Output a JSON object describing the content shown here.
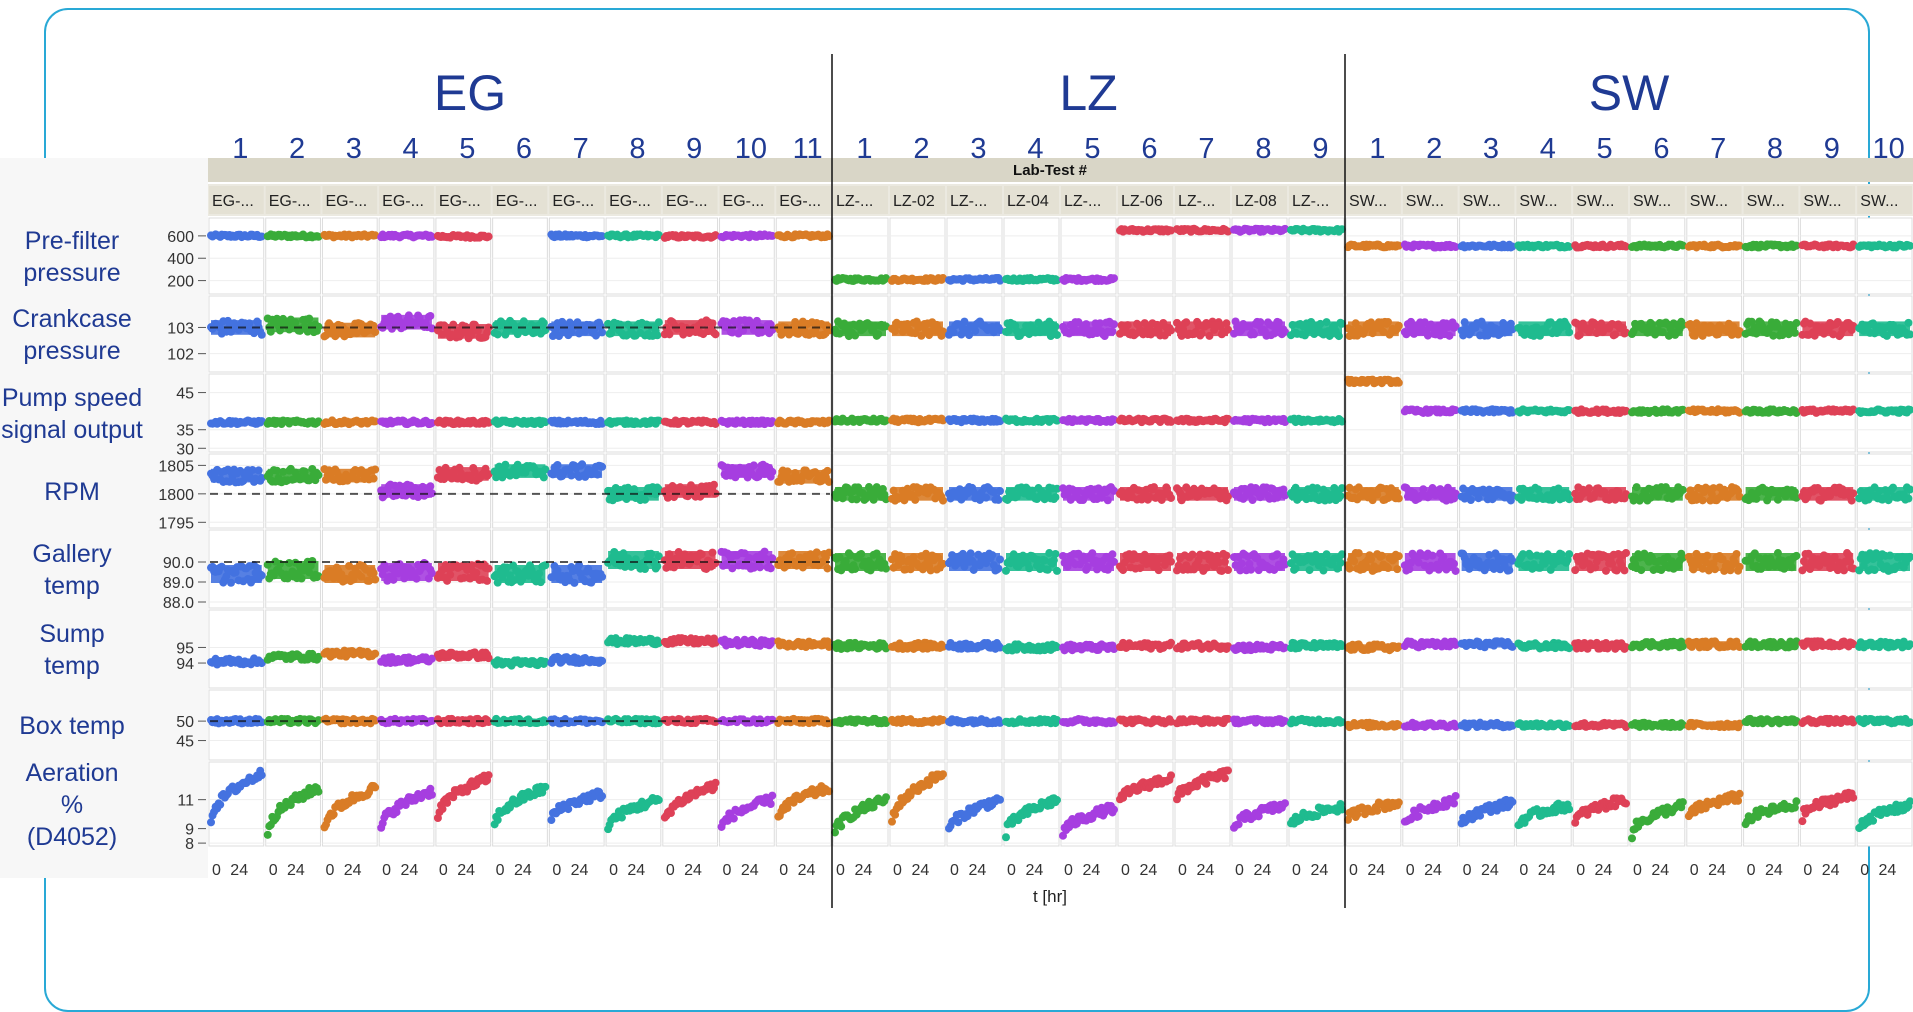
{
  "chart_data": {
    "type": "scatter",
    "header_title": "Lab-Test #",
    "x_axis_title": "t  [hr]",
    "x_tick_labels": [
      "0",
      "24"
    ],
    "groups": [
      {
        "name": "EG",
        "column_numbers": [
          "1",
          "2",
          "3",
          "4",
          "5",
          "6",
          "7",
          "8",
          "9",
          "10",
          "11"
        ],
        "test_ids": [
          "EG-...",
          "EG-...",
          "EG-...",
          "EG-...",
          "EG-...",
          "EG-...",
          "EG-...",
          "EG-...",
          "EG-...",
          "EG-...",
          "EG-..."
        ]
      },
      {
        "name": "LZ",
        "column_numbers": [
          "1",
          "2",
          "3",
          "4",
          "5",
          "6",
          "7",
          "8",
          "9"
        ],
        "test_ids": [
          "LZ-...",
          "LZ-02",
          "LZ-...",
          "LZ-04",
          "LZ-...",
          "LZ-06",
          "LZ-...",
          "LZ-08",
          "LZ-..."
        ]
      },
      {
        "name": "SW",
        "column_numbers": [
          "1",
          "2",
          "3",
          "4",
          "5",
          "6",
          "7",
          "8",
          "9",
          "10"
        ],
        "test_ids": [
          "SW...",
          "SW...",
          "SW...",
          "SW...",
          "SW...",
          "SW...",
          "SW...",
          "SW...",
          "SW...",
          "SW..."
        ]
      }
    ],
    "colors": [
      "#4472e0",
      "#3aac3a",
      "#d97c26",
      "#a63ee0",
      "#de4157",
      "#1fbb8f"
    ],
    "color_sequences": {
      "EG": [
        0,
        1,
        2,
        3,
        4,
        5,
        0,
        5,
        4,
        3,
        2
      ],
      "LZ": [
        1,
        2,
        0,
        5,
        3,
        4,
        4,
        3,
        5
      ],
      "SW": [
        2,
        3,
        0,
        5,
        4,
        1,
        2,
        1,
        4,
        5
      ]
    },
    "rows": [
      {
        "label": [
          "Pre-filter",
          "pressure"
        ],
        "ticks": [
          {
            "value": 600,
            "label": "600"
          },
          {
            "value": 400,
            "label": "400"
          },
          {
            "value": 200,
            "label": "200"
          }
        ],
        "range": [
          80,
          760
        ],
        "values": {
          "EG": [
            600,
            600,
            600,
            600,
            595,
            null,
            600,
            600,
            595,
            600,
            600
          ],
          "LZ": [
            210,
            210,
            210,
            210,
            210,
            650,
            650,
            650,
            650
          ],
          "SW": [
            510,
            510,
            510,
            510,
            510,
            510,
            510,
            510,
            510,
            510
          ]
        },
        "spread": 14
      },
      {
        "label": [
          "Crankcase",
          "pressure"
        ],
        "ticks": [
          {
            "value": 103,
            "label": "103"
          },
          {
            "value": 102,
            "label": "102"
          }
        ],
        "range": [
          101.3,
          104.2
        ],
        "values": {
          "EG": [
            103,
            103.1,
            102.9,
            103.2,
            102.85,
            103,
            102.95,
            102.95,
            103,
            103,
            102.95
          ],
          "LZ": [
            102.95,
            102.95,
            102.95,
            102.95,
            102.95,
            102.95,
            102.95,
            102.95,
            102.95
          ],
          "SW": [
            102.95,
            102.95,
            102.95,
            102.95,
            102.95,
            102.95,
            102.95,
            102.95,
            102.95,
            102.95
          ]
        },
        "spread": 0.28
      },
      {
        "label": [
          "Pump speed",
          "signal output"
        ],
        "ticks": [
          {
            "value": 45,
            "label": "45"
          },
          {
            "value": 35,
            "label": "35"
          },
          {
            "value": 30,
            "label": "30"
          }
        ],
        "range": [
          29,
          50
        ],
        "values": {
          "EG": [
            37,
            37,
            37,
            37,
            37,
            37,
            37,
            37,
            37,
            37,
            37
          ],
          "LZ": [
            37.5,
            37.5,
            37.5,
            37.5,
            37.5,
            37.5,
            37.5,
            37.5,
            37.5
          ],
          "SW": [
            48,
            40,
            40,
            40,
            40,
            40,
            40,
            40,
            40,
            40
          ]
        },
        "spread": 0.5
      },
      {
        "label": [
          "RPM"
        ],
        "ticks": [
          {
            "value": 1805,
            "label": "1805"
          },
          {
            "value": 1800,
            "label": "1800"
          },
          {
            "value": 1795,
            "label": "1795"
          }
        ],
        "range": [
          1794,
          1807
        ],
        "values": {
          "EG": [
            1803.2,
            1803.2,
            1803.2,
            1800.5,
            1803.5,
            1804,
            1804,
            1800,
            1800.5,
            1804,
            1803
          ],
          "LZ": [
            1800,
            1800,
            1800,
            1800,
            1800,
            1800,
            1800,
            1800,
            1800
          ],
          "SW": [
            1800,
            1800,
            1800,
            1800,
            1800,
            1800,
            1800,
            1800,
            1800,
            1800
          ]
        },
        "spread": 1.2
      },
      {
        "label": [
          "Gallery",
          "temp"
        ],
        "ticks": [
          {
            "value": 90.0,
            "label": "90.0"
          },
          {
            "value": 89.0,
            "label": "89.0"
          },
          {
            "value": 88.0,
            "label": "88.0"
          }
        ],
        "range": [
          87.7,
          91.6
        ],
        "values": {
          "EG": [
            89.4,
            89.6,
            89.4,
            89.5,
            89.5,
            89.4,
            89.4,
            90.1,
            90.1,
            90.1,
            90.1
          ],
          "LZ": [
            90,
            90,
            90,
            90,
            90,
            90,
            90,
            90,
            90
          ],
          "SW": [
            90,
            90,
            90,
            90,
            90,
            90,
            90,
            90,
            90,
            90
          ]
        },
        "spread": 0.45
      },
      {
        "label": [
          "Sump",
          "temp"
        ],
        "ticks": [
          {
            "value": 95,
            "label": "95"
          },
          {
            "value": 94,
            "label": "94"
          }
        ],
        "range": [
          92.4,
          97.4
        ],
        "values": {
          "EG": [
            94.1,
            94.4,
            94.6,
            94.2,
            94.5,
            94,
            94.2,
            95.4,
            95.4,
            95.3,
            95.2
          ],
          "LZ": [
            95.1,
            95.1,
            95.1,
            95,
            95,
            95.1,
            95.1,
            95,
            95.1
          ],
          "SW": [
            95,
            95.2,
            95.2,
            95.1,
            95.1,
            95.2,
            95.2,
            95.2,
            95.2,
            95.2
          ]
        },
        "spread": 0.2
      },
      {
        "label": [
          "Box temp"
        ],
        "ticks": [
          {
            "value": 50,
            "label": "50"
          },
          {
            "value": 45,
            "label": "45"
          }
        ],
        "range": [
          40,
          58
        ],
        "values": {
          "EG": [
            50,
            50,
            50,
            50,
            50,
            50,
            50,
            50,
            50,
            50,
            50
          ],
          "LZ": [
            50,
            50,
            50,
            50,
            50,
            50,
            50,
            50,
            50
          ],
          "SW": [
            49,
            49,
            49,
            49,
            49,
            49,
            49,
            50,
            50,
            50
          ]
        },
        "spread": 0.6
      },
      {
        "label": [
          "Aeration",
          "%",
          "(D4052)"
        ],
        "ticks": [
          {
            "value": 11,
            "label": "11"
          },
          {
            "value": 9,
            "label": "9"
          },
          {
            "value": 8,
            "label": "8"
          }
        ],
        "range": [
          7.8,
          13.6
        ],
        "values": {
          "EG": [
            [
              9.5,
              12.8
            ],
            [
              8.8,
              11.8
            ],
            [
              9,
              11.8
            ],
            [
              9,
              11.6
            ],
            [
              9.8,
              12.5
            ],
            [
              9.2,
              11.8
            ],
            [
              9.6,
              11.4
            ],
            [
              9,
              11
            ],
            [
              9.5,
              12
            ],
            [
              9,
              11
            ],
            [
              9.8,
              11.8
            ]
          ],
          "LZ": [
            [
              8.6,
              11
            ],
            [
              9.4,
              12.8
            ],
            [
              8.8,
              11
            ],
            [
              8.6,
              11
            ],
            [
              8.6,
              10.4
            ],
            [
              10.8,
              12.5
            ],
            [
              11,
              12.8
            ],
            [
              9,
              10.6
            ],
            [
              9.2,
              10.5
            ]
          ],
          "SW": [
            [
              9.6,
              10.8
            ],
            [
              9.2,
              11
            ],
            [
              9.2,
              10.8
            ],
            [
              9.2,
              10.6
            ],
            [
              9.4,
              11
            ],
            [
              8.6,
              10.6
            ],
            [
              9.8,
              11.2
            ],
            [
              9.4,
              10.6
            ],
            [
              9.8,
              11.3
            ],
            [
              9,
              10.6
            ]
          ]
        },
        "spread": 0.3
      }
    ],
    "reference_lines": [
      {
        "row": 1,
        "value": 103
      },
      {
        "row": 3,
        "value": 1800
      },
      {
        "row": 4,
        "value": 90.0
      },
      {
        "row": 6,
        "value": 50
      }
    ]
  }
}
